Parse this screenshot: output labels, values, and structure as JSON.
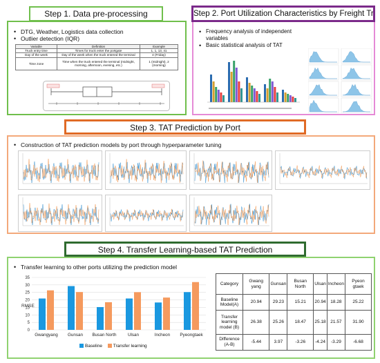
{
  "step1": {
    "title": "Step 1. Data pre-processing",
    "bullets": [
      "DTG, Weather, Logistics data collection",
      "Outlier detection (IQR)"
    ],
    "table": {
      "headers": [
        "Variable",
        "Definition",
        "Example"
      ],
      "rows": [
        [
          "Truck entry time",
          "Times for truck enter the portgate",
          "1, 1, 13, 41"
        ],
        [
          "Day of the week",
          "Day of the week when the truck entered the terminal",
          "4 (Friday)"
        ],
        [
          "Time zone",
          "Time when the truck entered the terminal (midnight, morning, afternoon, evening, etc.)",
          "1 (midnight), 2 (morning)"
        ]
      ]
    }
  },
  "step2": {
    "title": "Step 2. Port Utilization Characteristics by Freight Trucks",
    "bullets": [
      "Frequency analysis of independent variables",
      "Basic statistical analysis of TAT"
    ]
  },
  "step3": {
    "title": "Step 3. TAT Prediction by Port",
    "bullets": [
      "Construction of TAT prediction models by port through hyperparameter tuning"
    ]
  },
  "step4": {
    "title": "Step 4. Transfer Learning-based TAT Prediction",
    "bullets": [
      "Transfer learning to other ports utilizing the prediction model"
    ]
  },
  "colors": {
    "step1": "#6fbf4b",
    "step2": "#7b2a8a",
    "step2_panel": "#e58ad6",
    "step3": "#e06a25",
    "step3_panel": "#f3a87a",
    "step4": "#2f6b2f",
    "step4_panel": "#8fd26f",
    "baseline": "#1a98e0",
    "transfer": "#f59a5e"
  },
  "chart_data": {
    "type": "bar",
    "ylabel": "RMSE",
    "ylim": [
      0,
      35
    ],
    "yticks": [
      0,
      5,
      10,
      15,
      20,
      25,
      30,
      35
    ],
    "categories": [
      "Gwangyang",
      "Gunsan",
      "Busan North",
      "Ulsan",
      "Incheon",
      "Pyeongtaek"
    ],
    "series": [
      {
        "name": "Baseline",
        "values": [
          20.94,
          29.23,
          15.21,
          20.94,
          18.28,
          25.22
        ]
      },
      {
        "name": "Transfer learning",
        "values": [
          26.38,
          25.26,
          18.47,
          25.18,
          21.57,
          31.9
        ]
      }
    ],
    "legend": "bottom"
  },
  "results_table": {
    "headers": [
      "Category",
      "Gwang yang",
      "Gunsan",
      "Busan North",
      "Ulsan",
      "Incheon",
      "Pyeon gtaek"
    ],
    "rows": [
      [
        "Baseline Model(A)",
        "20.94",
        "29.23",
        "15.21",
        "20.94",
        "18.28",
        "25.22"
      ],
      [
        "Transfer learning model (B)",
        "26.38",
        "25.26",
        "18.47",
        "25.18",
        "21.57",
        "31.90"
      ],
      [
        "Difference (A-B)",
        "-5.44",
        "3.97",
        "-3.26",
        "-4.24",
        "-3.29",
        "-6.68"
      ]
    ]
  }
}
